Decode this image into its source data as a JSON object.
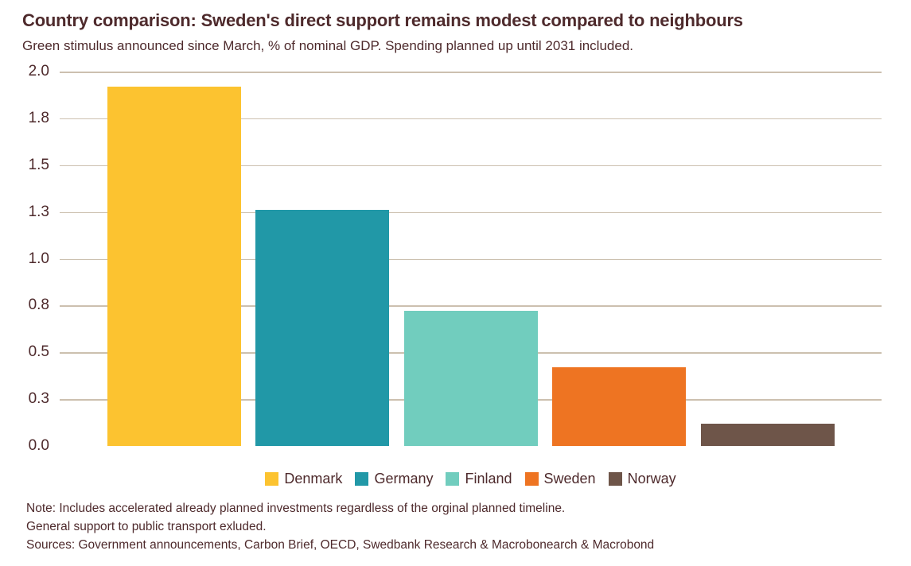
{
  "header": {
    "title": "Country comparison: Sweden's direct support remains modest compared to neighbours",
    "subtitle": "Green stimulus announced since March, % of nominal GDP. Spending planned up until 2031 included."
  },
  "chart_data": {
    "type": "bar",
    "title": "Country comparison: Sweden's direct support remains modest compared to neighbours",
    "subtitle": "Green stimulus announced since March, % of nominal GDP. Spending planned up until 2031 included.",
    "categories": [
      "Denmark",
      "Germany",
      "Finland",
      "Sweden",
      "Norway"
    ],
    "values": [
      1.92,
      1.26,
      0.72,
      0.42,
      0.12
    ],
    "colors": [
      "#FCC330",
      "#2198A7",
      "#71CDBE",
      "#EE7422",
      "#6E5549"
    ],
    "xlabel": "",
    "ylabel": "% of nominal GDP",
    "ylim": [
      0,
      2.0
    ],
    "ytick_interval": 0.25,
    "ytick_labels": [
      "0.0",
      "0.3",
      "0.5",
      "0.8",
      "1.0",
      "1.3",
      "1.5",
      "1.8",
      "2.0"
    ],
    "grid": "horizontal",
    "gridline_color": "#CCC0AF",
    "legend_position": "bottom"
  },
  "footer": {
    "note_line1": "Note: Includes accelerated already planned investments regardless of the orginal planned timeline.",
    "note_line2": "General support to public transport exluded.",
    "sources": "Sources: Government announcements, Carbon Brief, OECD, Swedbank Research & Macrobonearch & Macrobond"
  },
  "colors": {
    "text": "#4E2A2C",
    "background": "#FFFFFF"
  }
}
